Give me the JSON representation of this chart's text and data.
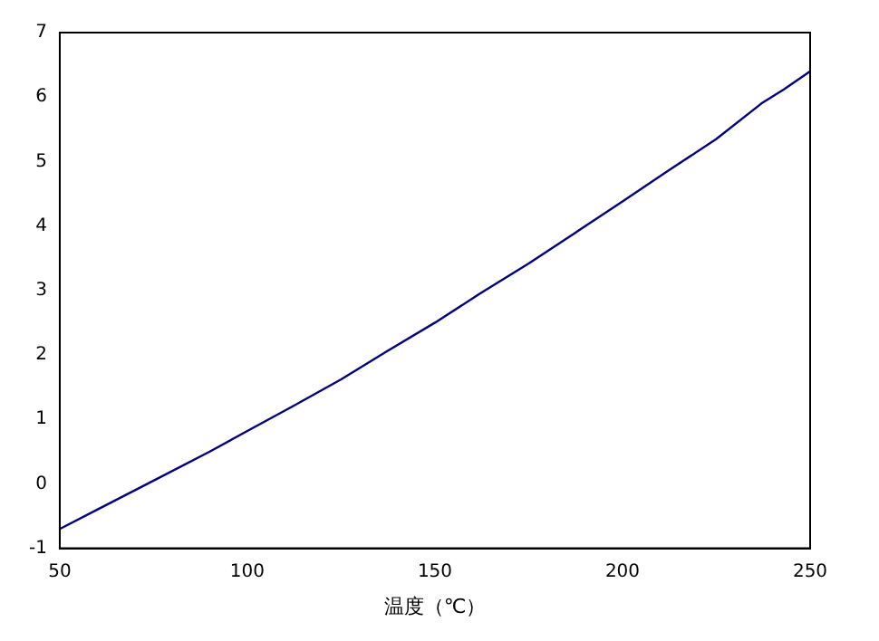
{
  "chart_data": {
    "type": "line",
    "xlabel": "温度（℃）",
    "series": [
      {
        "color": "#000080",
        "x": [
          50,
          60,
          75,
          90,
          100,
          112,
          125,
          137,
          150,
          162,
          175,
          187,
          200,
          212,
          225,
          237,
          243,
          250
        ],
        "values": [
          -0.7,
          -0.4,
          0.05,
          0.5,
          0.82,
          1.2,
          1.62,
          2.05,
          2.5,
          2.95,
          3.42,
          3.88,
          4.38,
          4.85,
          5.35,
          5.9,
          6.12,
          6.4
        ]
      }
    ],
    "xlim": [
      50,
      250
    ],
    "xticks": [
      50,
      100,
      150,
      200,
      250
    ],
    "ylim": [
      -1,
      7
    ],
    "yticks": [
      -1,
      0,
      1,
      2,
      3,
      4,
      5,
      6,
      7
    ],
    "grid": false,
    "legend": false,
    "marker": "none",
    "line_style": "solid"
  }
}
